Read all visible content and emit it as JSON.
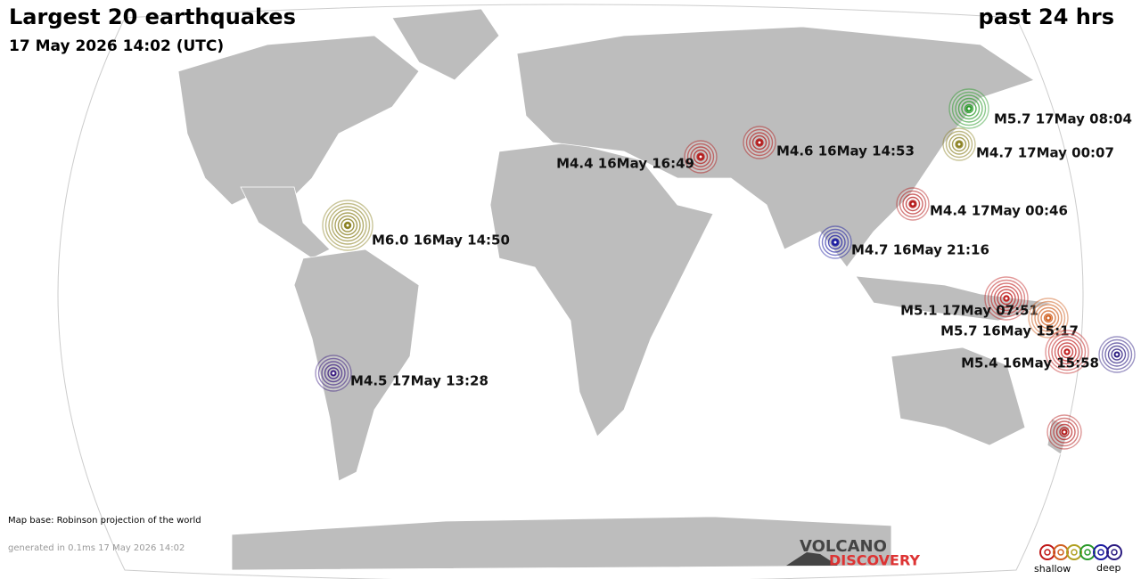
{
  "header": {
    "title": "Largest 20 earthquakes",
    "subtitle": "17 May 2026 14:02 (UTC)",
    "period": "past 24 hrs"
  },
  "quakes": [
    {
      "label": "M5.7 17May 08:04"
    },
    {
      "label": "M4.6 16May 14:53"
    },
    {
      "label": "M4.4 16May 16:49"
    },
    {
      "label": "M4.7 17May 00:07"
    },
    {
      "label": "M4.4 17May 00:46"
    },
    {
      "label": "M6.0 16May 14:50"
    },
    {
      "label": "M4.7 16May 21:16"
    },
    {
      "label": "M5.1 17May 07:51"
    },
    {
      "label": "M5.7 16May 15:17"
    },
    {
      "label": "M5.4 16May 15:58"
    },
    {
      "label": "M4.5 17May 13:28"
    }
  ],
  "footer": {
    "map_base": "Map base: Robinson projection of the world",
    "generated": "generated in 0.1ms 17 May 2026 14:02"
  },
  "logo": {
    "line1": "VOLCANO",
    "line2": "DISCOVERY"
  },
  "legend": {
    "shallow": "shallow",
    "deep": "deep"
  }
}
